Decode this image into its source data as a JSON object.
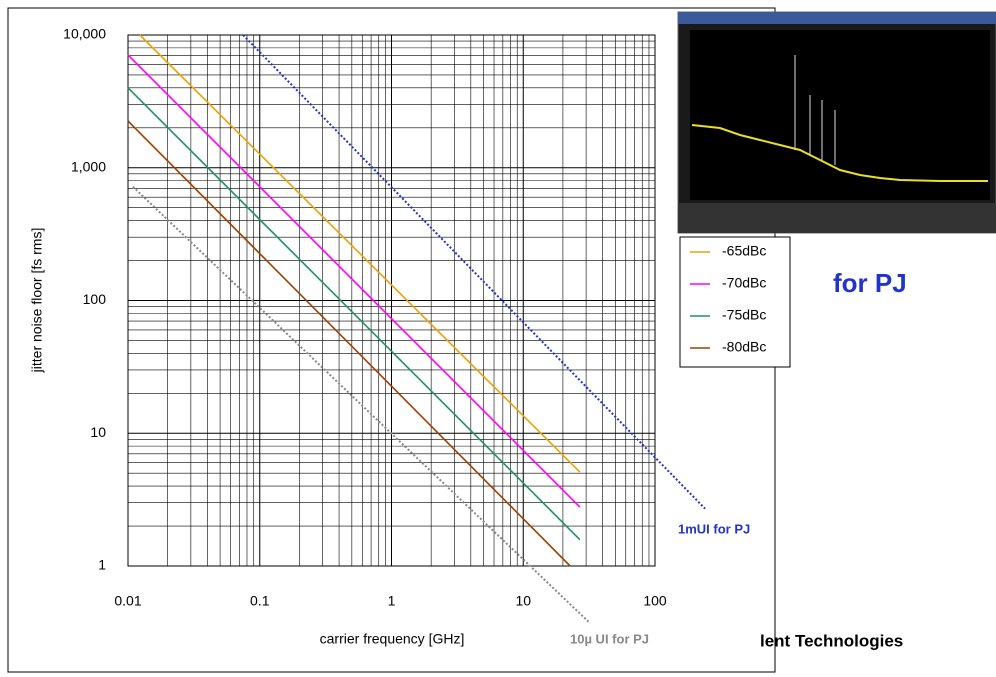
{
  "chart_data": {
    "type": "line",
    "x_label": "carrier frequency [GHz]",
    "y_label": "jitter noise floor [fs rms]",
    "log_x": true,
    "log_y": true,
    "grid": true,
    "xlim": [
      0.01,
      100
    ],
    "xticks": [
      0.01,
      0.1,
      1,
      10,
      100
    ],
    "ylim": [
      1,
      10000
    ],
    "yticks": [
      {
        "value": 10000,
        "label": "10,000"
      },
      {
        "value": 1000,
        "label": "1,000"
      },
      100,
      10,
      1
    ],
    "series": [
      {
        "name": "-65dBc",
        "color": "#f0a000",
        "x": [
          0.0123,
          26.9
        ],
        "values": [
          10000,
          5.1
        ]
      },
      {
        "name": "-70dBc",
        "color": "#ff00ff",
        "x": [
          0.01,
          26.9
        ],
        "values": [
          7070,
          2.78
        ]
      },
      {
        "name": "-75dBc",
        "color": "#20906a",
        "x": [
          0.01,
          26.9
        ],
        "values": [
          4000,
          1.58
        ]
      },
      {
        "name": "-80dBc",
        "color": "#a04000",
        "x": [
          0.01,
          22.7
        ],
        "values": [
          2250,
          1
        ]
      }
    ],
    "reference_lines": [
      {
        "label": "1mUI for PJ",
        "color": "#2233cc",
        "x": [
          0.0747,
          240
        ],
        "values": [
          10000,
          2.7
        ]
      },
      {
        "label": "10µ UI for PJ",
        "color": "#888888",
        "x": [
          0.0109,
          32.2
        ],
        "values": [
          720,
          0.37
        ]
      }
    ],
    "annotations": [
      "for PJ",
      "lent Technologies"
    ]
  }
}
